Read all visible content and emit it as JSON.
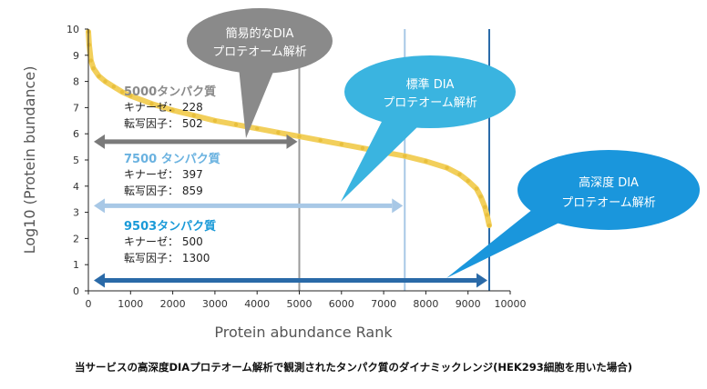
{
  "chart_data": {
    "type": "scatter",
    "xlabel": "Protein abundance Rank",
    "ylabel": "Log10 (Protein bundance)",
    "xlim": [
      0,
      10000
    ],
    "ylim": [
      0,
      10
    ],
    "x_ticks": [
      "0",
      "1000",
      "2000",
      "3000",
      "4000",
      "5000",
      "6000",
      "7000",
      "8000",
      "9000",
      "10000"
    ],
    "y_ticks": [
      "0",
      "1",
      "2",
      "3",
      "4",
      "5",
      "6",
      "7",
      "8",
      "9",
      "10"
    ],
    "grid": false,
    "series": [
      {
        "color": "#f2cf5b",
        "points": [
          [
            1,
            9.9
          ],
          [
            20,
            9.4
          ],
          [
            60,
            8.8
          ],
          [
            120,
            8.5
          ],
          [
            250,
            8.2
          ],
          [
            400,
            8.0
          ],
          [
            600,
            7.8
          ],
          [
            800,
            7.6
          ],
          [
            1000,
            7.45
          ],
          [
            1500,
            7.15
          ],
          [
            2000,
            6.9
          ],
          [
            2500,
            6.7
          ],
          [
            3000,
            6.5
          ],
          [
            3500,
            6.35
          ],
          [
            4000,
            6.2
          ],
          [
            4500,
            6.05
          ],
          [
            5000,
            5.9
          ],
          [
            5500,
            5.75
          ],
          [
            6000,
            5.6
          ],
          [
            6500,
            5.45
          ],
          [
            7000,
            5.3
          ],
          [
            7500,
            5.15
          ],
          [
            8000,
            4.95
          ],
          [
            8500,
            4.7
          ],
          [
            8800,
            4.45
          ],
          [
            9000,
            4.2
          ],
          [
            9200,
            3.9
          ],
          [
            9300,
            3.6
          ],
          [
            9400,
            3.2
          ],
          [
            9450,
            2.9
          ],
          [
            9503,
            2.5
          ]
        ]
      }
    ],
    "vlines": [
      {
        "x": 5000,
        "color": "#9a9a9a"
      },
      {
        "x": 7500,
        "color": "#a8c8e6"
      },
      {
        "x": 9503,
        "color": "#2a6aa8"
      }
    ],
    "ranges": [
      {
        "x_start": 0,
        "x_end": 5000,
        "y": 5.7,
        "color": "#7a7a7a"
      },
      {
        "x_start": 0,
        "x_end": 7500,
        "y": 3.25,
        "color": "#a8c8e6"
      },
      {
        "x_start": 0,
        "x_end": 9503,
        "y": 0.4,
        "color": "#2a6aa8"
      }
    ],
    "annotations": [
      {
        "title": "5000タンパク質",
        "line1": "キナーゼ： 228",
        "line2": "転写因子： 502",
        "title_color": "#8a8a8a"
      },
      {
        "title": "7500 タンパク質",
        "line1": "キナーゼ： 397",
        "line2": "転写因子： 859",
        "title_color": "#6ab2e0"
      },
      {
        "title": "9503タンパク質",
        "line1": "キナーゼ： 500",
        "line2": "転写因子： 1300",
        "title_color": "#1a9ad8"
      }
    ],
    "bubbles": [
      {
        "line1": "簡易的なDIA",
        "line2": "プロテオーム解析",
        "color": "#8a8a8a"
      },
      {
        "line1": "標準 DIA",
        "line2": "プロテオーム解析",
        "color": "#3ab4e0"
      },
      {
        "line1": "高深度 DIA",
        "line2": "プロテオーム解析",
        "color": "#1a96dc"
      }
    ]
  },
  "caption": "当サービスの高深度DIAプロテオーム解析で観測されたタンパク質のダイナミックレンジ(HEK293細胞を用いた場合)"
}
